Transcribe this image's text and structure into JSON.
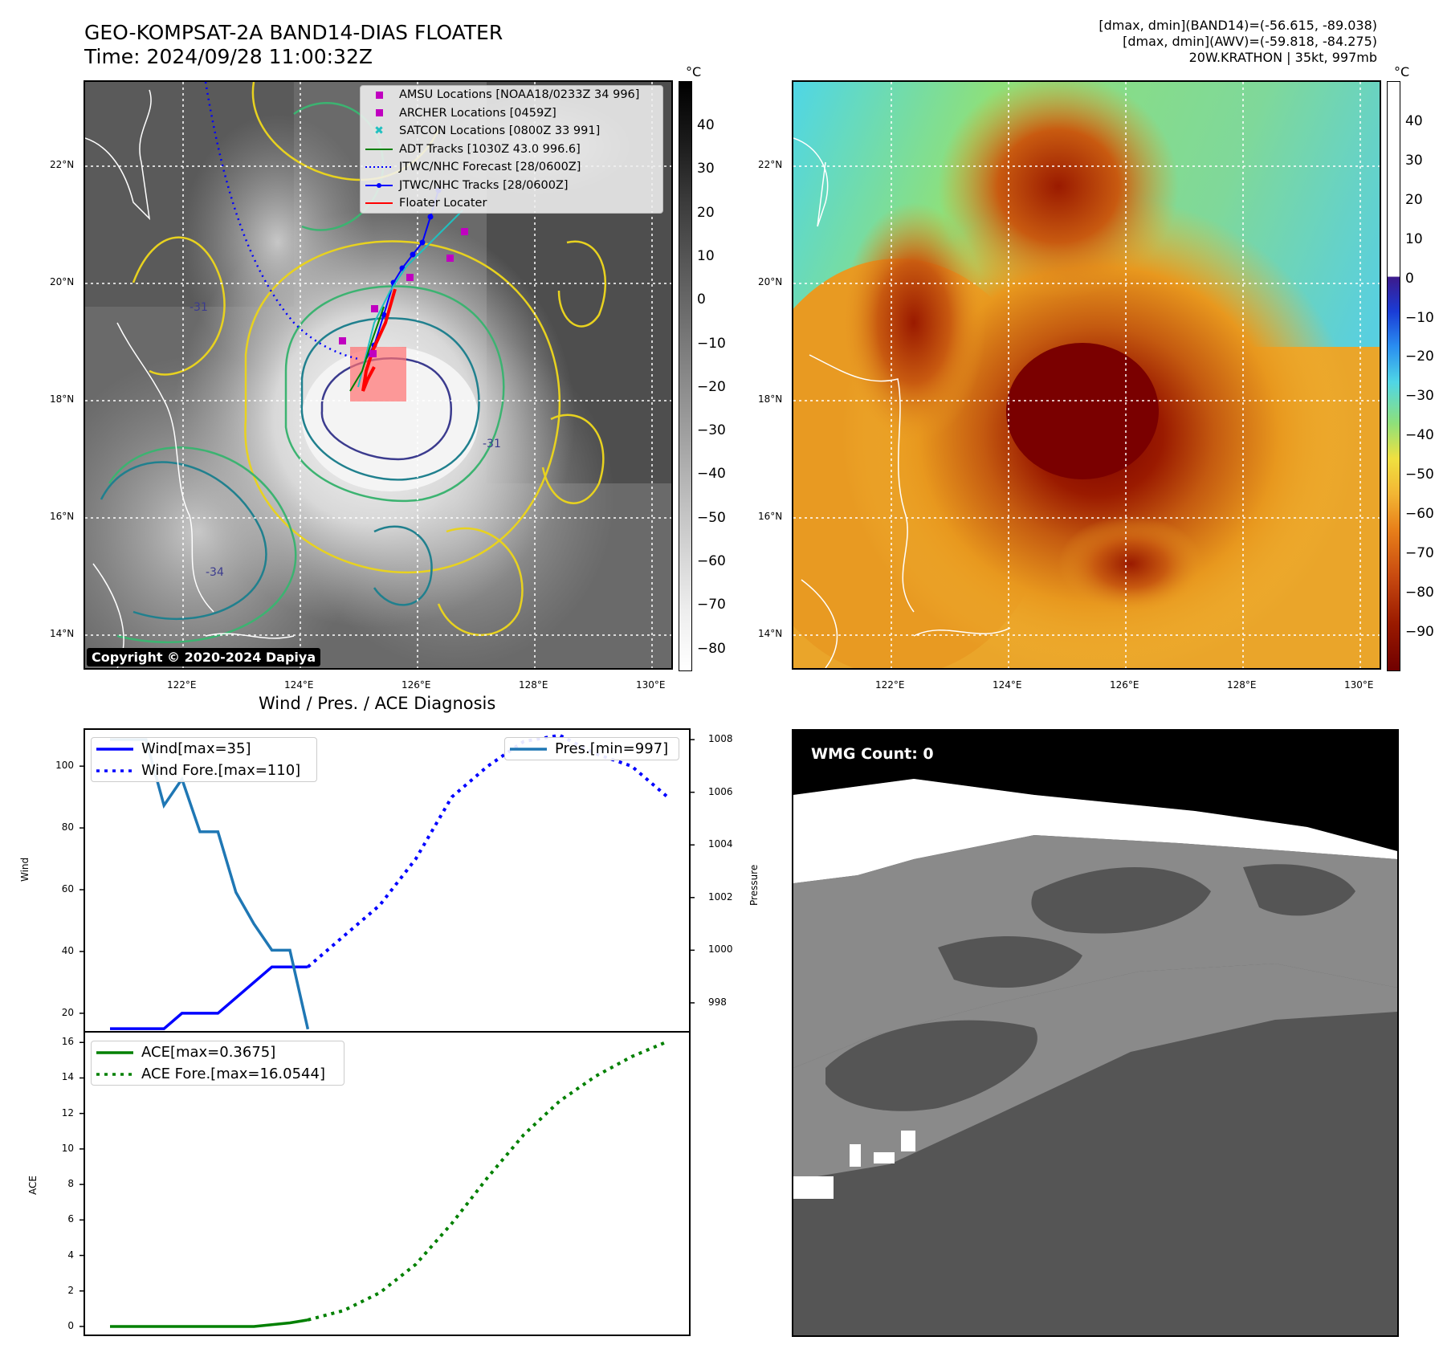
{
  "header": {
    "title_line1": "GEO-KOMPSAT-2A BAND14-DIAS FLOATER",
    "title_line2": "Time: 2024/09/28 11:00:32Z",
    "info_line1": "[dmax, dmin](BAND14)=(-56.615, -89.038)",
    "info_line2": "[dmax, dmin](AWV)=(-59.818, -84.275)",
    "info_line3": "20W.KRATHON | 35kt, 997mb"
  },
  "map": {
    "lat_ticks": [
      "22°N",
      "20°N",
      "18°N",
      "16°N",
      "14°N"
    ],
    "lon_ticks": [
      "122°E",
      "124°E",
      "126°E",
      "128°E",
      "130°E"
    ],
    "copyright": "Copyright © 2020-2024 Dapiya",
    "contour_labels": [
      "-31",
      "-34"
    ],
    "colors": {
      "amsu": "#c000c0",
      "archer": "#c000c0",
      "satcon": "#20c0c0",
      "adt": "#008000",
      "jtwc": "#0000ff",
      "floater": "#ff0000"
    }
  },
  "legend": {
    "amsu": "AMSU Locations [NOAA18/0233Z 34 996]",
    "archer": "ARCHER Locations [0459Z]",
    "satcon": "SATCON Locations [0800Z 33 991]",
    "adt": "ADT Tracks [1030Z 43.0 996.6]",
    "jtwc_forecast": "JTWC/NHC Forecast [28/0600Z]",
    "jtwc_tracks": "JTWC/NHC Tracks [28/0600Z]",
    "floater": "Floater Locater"
  },
  "colorbar1": {
    "unit": "°C",
    "ticks": [
      "40",
      "30",
      "20",
      "10",
      "0",
      "−10",
      "−20",
      "−30",
      "−40",
      "−50",
      "−60",
      "−70",
      "−80"
    ]
  },
  "colorbar2": {
    "unit": "°C",
    "ticks": [
      "40",
      "30",
      "20",
      "10",
      "0",
      "−10",
      "−20",
      "−30",
      "−40",
      "−50",
      "−60",
      "−70",
      "−80",
      "−90"
    ]
  },
  "diagnosis": {
    "title": "Wind / Pres. / ACE Diagnosis",
    "wind_ylabel": "Wind",
    "pres_ylabel": "Pressure",
    "ace_ylabel": "ACE",
    "wind_ticks": [
      "100",
      "80",
      "60",
      "40",
      "20"
    ],
    "pres_ticks": [
      "1008",
      "1006",
      "1004",
      "1002",
      "1000",
      "998"
    ],
    "ace_ticks": [
      "16",
      "14",
      "12",
      "10",
      "8",
      "6",
      "4",
      "2",
      "0"
    ],
    "legend_wind": "Wind[max=35]",
    "legend_wind_fore": "Wind Fore.[max=110]",
    "legend_pres": "Pres.[min=997]",
    "legend_ace": "ACE[max=0.3675]",
    "legend_ace_fore": "ACE Fore.[max=16.0544]"
  },
  "wmg": {
    "label": "WMG Count: 0"
  },
  "chart_data": [
    {
      "type": "line",
      "name": "Wind",
      "ylim": [
        14,
        112
      ],
      "series": [
        {
          "name": "Wind[max=35]",
          "color": "#0000ff",
          "style": "solid",
          "x": [
            0,
            1,
            2,
            3,
            4,
            5,
            6,
            7,
            8,
            9,
            10,
            11
          ],
          "values": [
            15,
            15,
            15,
            15,
            20,
            20,
            20,
            25,
            30,
            35,
            35,
            35
          ]
        },
        {
          "name": "Wind Fore.[max=110]",
          "color": "#0000ff",
          "style": "dotted",
          "x": [
            11,
            13,
            15,
            17,
            19,
            21,
            23,
            25,
            27,
            29,
            31
          ],
          "values": [
            35,
            45,
            55,
            70,
            90,
            100,
            108,
            110,
            104,
            100,
            90
          ]
        }
      ]
    },
    {
      "type": "line",
      "name": "Pressure",
      "ylim": [
        996.9,
        1008.4
      ],
      "series": [
        {
          "name": "Pres.[min=997]",
          "color": "#1f77b4",
          "style": "solid",
          "x": [
            0,
            1,
            2,
            3,
            4,
            5,
            6,
            7,
            8,
            9,
            10,
            11
          ],
          "values": [
            1008,
            1008,
            1008,
            1005.5,
            1006.5,
            1004.5,
            1004.5,
            1002.2,
            1001,
            1000,
            1000,
            997
          ]
        }
      ]
    },
    {
      "type": "line",
      "name": "ACE",
      "ylim": [
        -0.5,
        16.6
      ],
      "series": [
        {
          "name": "ACE[max=0.3675]",
          "color": "#008000",
          "style": "solid",
          "x": [
            0,
            2,
            4,
            6,
            8,
            10,
            11
          ],
          "values": [
            0,
            0,
            0,
            0,
            0,
            0.2,
            0.3675
          ]
        },
        {
          "name": "ACE Fore.[max=16.0544]",
          "color": "#008000",
          "style": "dotted",
          "x": [
            11,
            13,
            15,
            17,
            19,
            21,
            23,
            25,
            27,
            29,
            31
          ],
          "values": [
            0.3675,
            0.9,
            1.9,
            3.5,
            5.8,
            8.4,
            10.8,
            12.7,
            14.1,
            15.2,
            16.0544
          ]
        }
      ]
    }
  ]
}
